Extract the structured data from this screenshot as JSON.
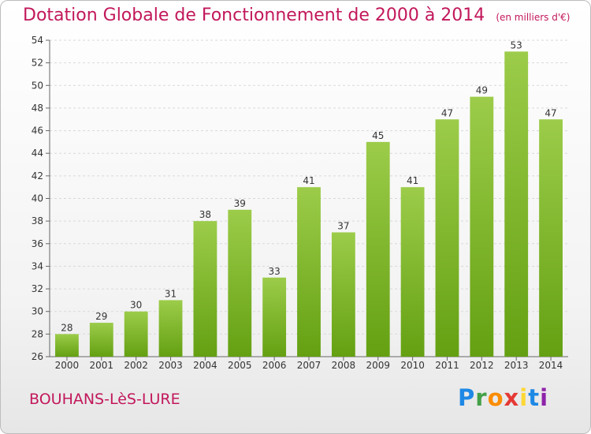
{
  "header": {
    "title": "Dotation Globale de Fonctionnement de 2000 à 2014",
    "unit": "(en milliers d'€)"
  },
  "footer": {
    "city": "BOUHANS-LèS-LURE",
    "brand": "Proxiti"
  },
  "colors": {
    "title": "#c2185b",
    "bar_top": "#9ccc4a",
    "bar_bottom": "#64a012"
  },
  "chart_data": {
    "type": "bar",
    "title": "Dotation Globale de Fonctionnement de 2000 à 2014",
    "subtitle": "(en milliers d'€)",
    "xlabel": "",
    "ylabel": "",
    "categories": [
      "2000",
      "2001",
      "2002",
      "2003",
      "2004",
      "2005",
      "2006",
      "2007",
      "2008",
      "2009",
      "2010",
      "2011",
      "2012",
      "2013",
      "2014"
    ],
    "values": [
      28,
      29,
      30,
      31,
      38,
      39,
      33,
      41,
      37,
      45,
      41,
      47,
      49,
      53,
      47
    ],
    "ylim": [
      26,
      54
    ],
    "yticks": [
      26,
      28,
      30,
      32,
      34,
      36,
      38,
      40,
      42,
      44,
      46,
      48,
      50,
      52,
      54
    ],
    "grid": true,
    "legend": "none"
  }
}
